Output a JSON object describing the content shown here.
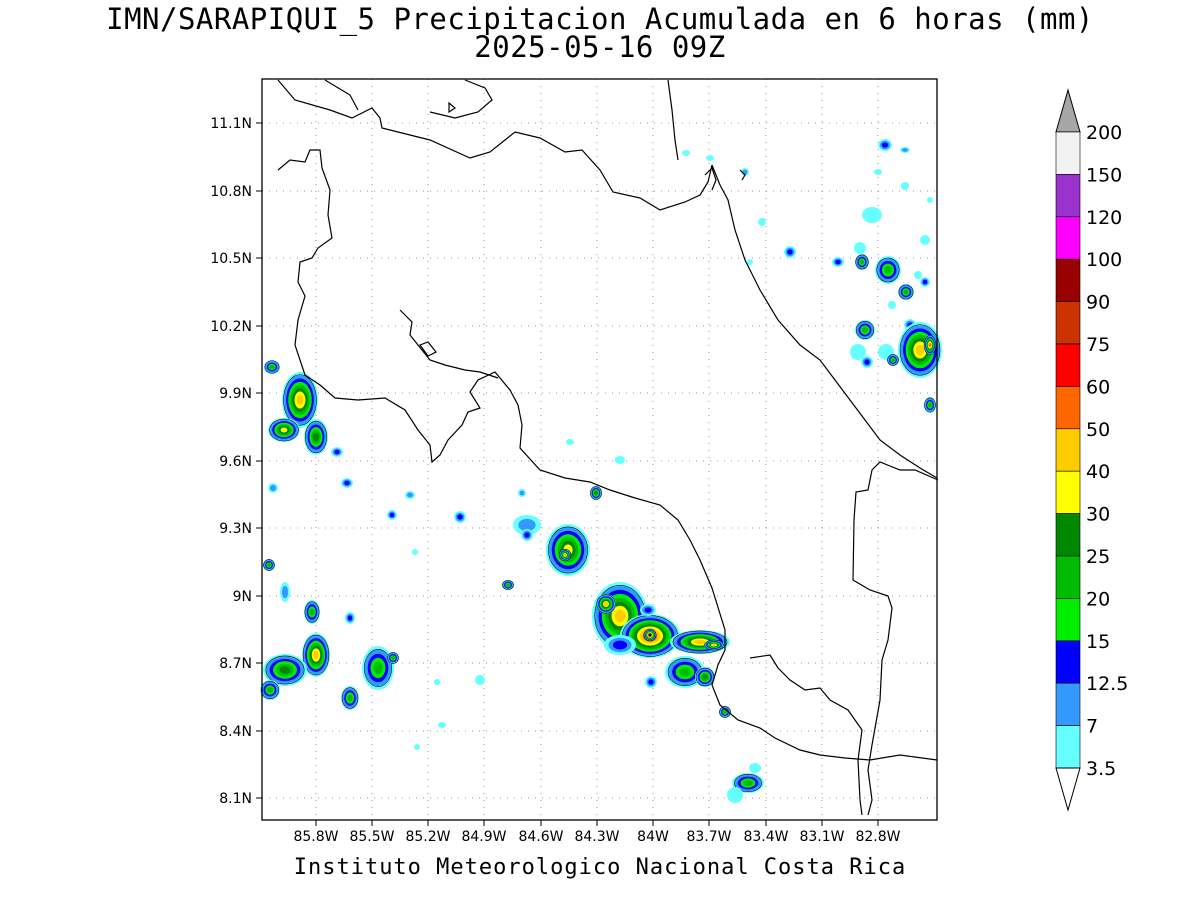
{
  "title_line1": "IMN/SARAPIQUI_5 Precipitacion Acumulada en 6 horas (mm)",
  "title_line2": "2025-05-16 09Z",
  "footer": "Instituto Meteorologico Nacional Costa Rica",
  "lat_ticks": [
    "11.1N",
    "10.8N",
    "10.5N",
    "10.2N",
    "9.9N",
    "9.6N",
    "9.3N",
    "9N",
    "8.7N",
    "8.4N",
    "8.1N"
  ],
  "lon_ticks": [
    "85.8W",
    "85.5W",
    "85.2W",
    "84.9W",
    "84.6W",
    "84.3W",
    "84W",
    "83.7W",
    "83.4W",
    "83.1W",
    "82.8W"
  ],
  "colorbar": {
    "labels": [
      "200",
      "150",
      "120",
      "100",
      "90",
      "75",
      "60",
      "50",
      "40",
      "30",
      "25",
      "20",
      "15",
      "12.5",
      "7",
      "3.5"
    ],
    "colors": [
      "#f2f2f2",
      "#9933cc",
      "#ff00ff",
      "#990000",
      "#cc3300",
      "#ff0000",
      "#ff6600",
      "#ffcc00",
      "#ffff00",
      "#008800",
      "#00bb00",
      "#00ee00",
      "#0000ff",
      "#3399ff",
      "#66ffff"
    ],
    "over_color": "#a6a6a6",
    "under_color": "#ffffff"
  }
}
